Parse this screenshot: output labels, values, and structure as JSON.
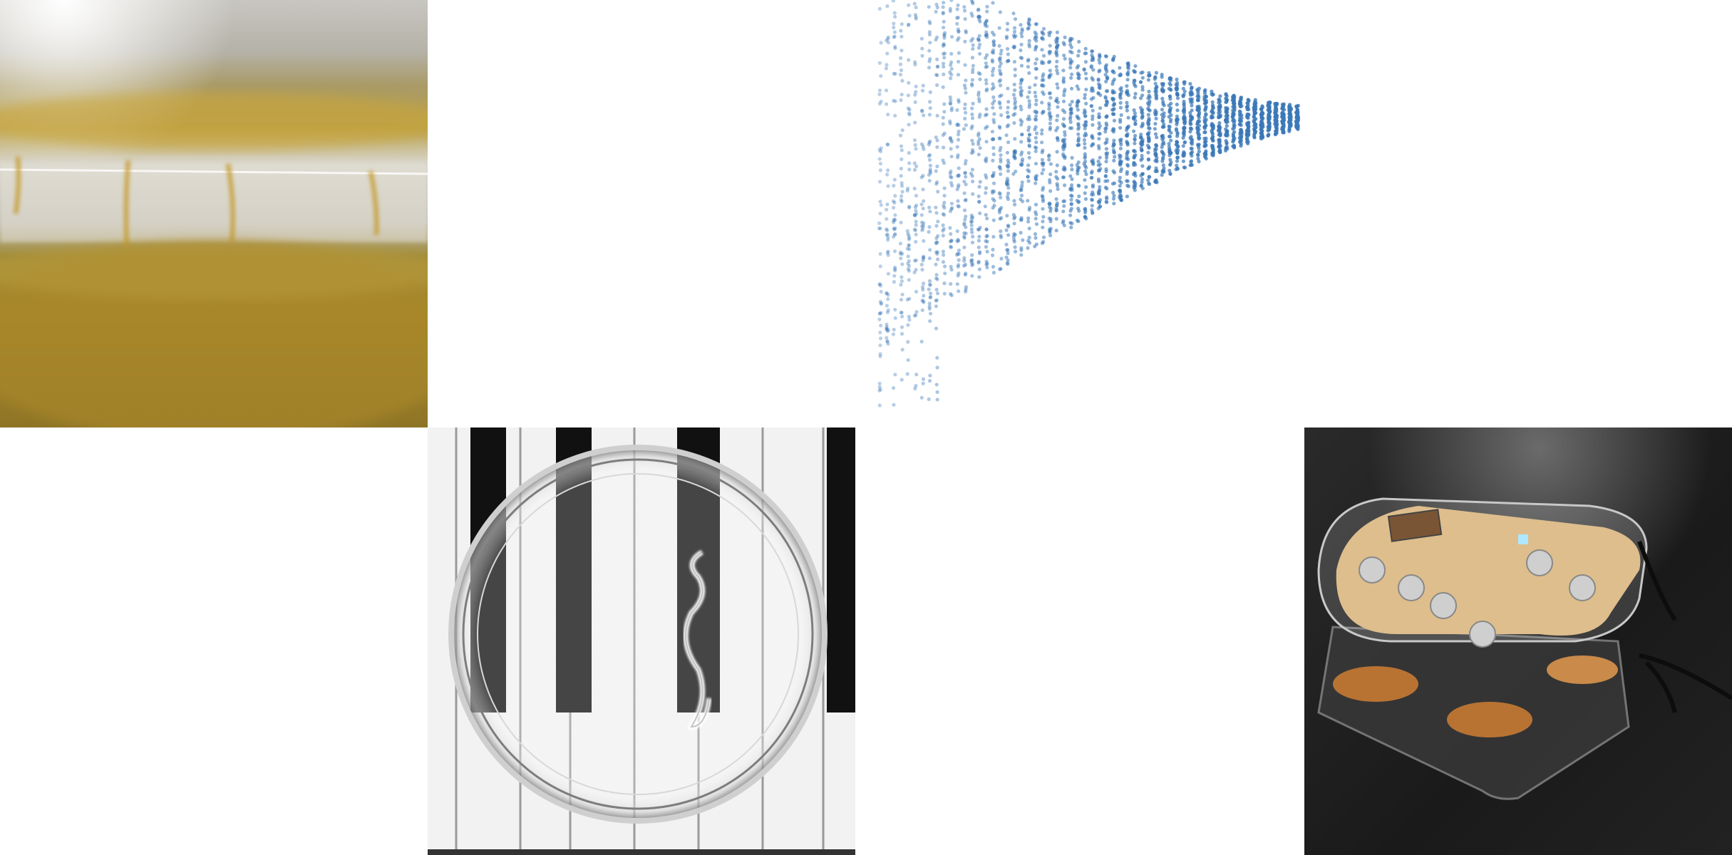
{
  "tiles": [
    {
      "name": "slime-mold-photo"
    },
    {
      "name": "scatter-plot"
    },
    {
      "name": "petri-dish-on-piano-photo"
    },
    {
      "name": "acrylic-device-photo"
    }
  ],
  "colors": {
    "background": "#ffffff",
    "scatter_point": "#3b78b8",
    "mold_yellow": "#c9a43a",
    "mold_dark": "#8a6c1e",
    "desk_black": "#1a1a1a",
    "wood": "#d9b37a",
    "copper": "#b87333"
  },
  "chart_data": {
    "type": "scatter",
    "series_count": 1,
    "grid": false,
    "axes_visible": false,
    "legend": "none",
    "point_color": "#3b78b8",
    "shape": "dense point cloud: vertical columns of points that spread widely on the left and converge into a narrow horizontal band on the right"
  }
}
